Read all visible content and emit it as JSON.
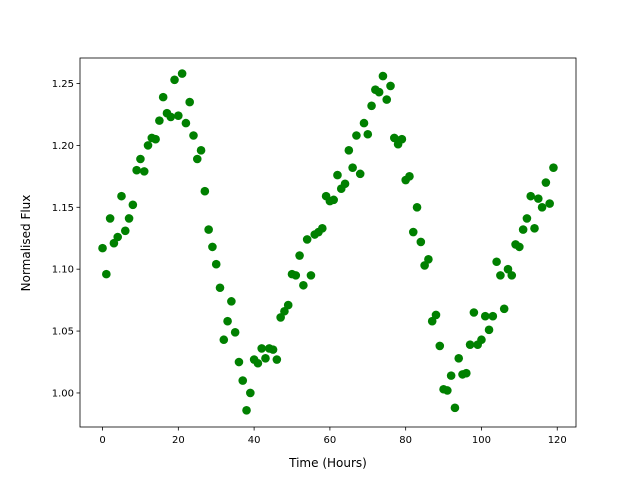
{
  "chart_data": {
    "type": "scatter",
    "xlabel": "Time (Hours)",
    "ylabel": "Normalised Flux",
    "color": "#008000",
    "x": [
      0,
      1,
      2,
      3,
      4,
      5,
      6,
      7,
      8,
      9,
      10,
      11,
      12,
      13,
      14,
      15,
      16,
      17,
      18,
      19,
      20,
      21,
      22,
      23,
      24,
      25,
      26,
      27,
      28,
      29,
      30,
      31,
      32,
      33,
      34,
      35,
      36,
      37,
      38,
      39,
      40,
      41,
      42,
      43,
      44,
      45,
      46,
      47,
      48,
      49,
      50,
      51,
      52,
      53,
      54,
      55,
      56,
      57,
      58,
      59,
      60,
      61,
      62,
      63,
      64,
      65,
      66,
      67,
      68,
      69,
      70,
      71,
      72,
      73,
      74,
      75,
      76,
      77,
      78,
      79,
      80,
      81,
      82,
      83,
      84,
      85,
      86,
      87,
      88,
      89,
      90,
      91,
      92,
      93,
      94,
      95,
      96,
      97,
      98,
      99,
      100,
      101,
      102,
      103,
      104,
      105,
      106,
      107,
      108,
      109,
      110,
      111,
      112,
      113,
      114,
      115,
      116,
      117,
      118,
      119
    ],
    "values": [
      1.117,
      1.096,
      1.141,
      1.121,
      1.126,
      1.159,
      1.131,
      1.141,
      1.152,
      1.18,
      1.189,
      1.179,
      1.2,
      1.206,
      1.205,
      1.22,
      1.239,
      1.226,
      1.223,
      1.253,
      1.224,
      1.258,
      1.218,
      1.235,
      1.208,
      1.189,
      1.196,
      1.163,
      1.132,
      1.118,
      1.104,
      1.085,
      1.043,
      1.058,
      1.074,
      1.049,
      1.025,
      1.01,
      0.986,
      1.0,
      1.027,
      1.024,
      1.036,
      1.028,
      1.036,
      1.035,
      1.027,
      1.061,
      1.066,
      1.071,
      1.096,
      1.095,
      1.111,
      1.087,
      1.124,
      1.095,
      1.128,
      1.13,
      1.133,
      1.159,
      1.155,
      1.156,
      1.176,
      1.165,
      1.169,
      1.196,
      1.182,
      1.208,
      1.177,
      1.218,
      1.209,
      1.232,
      1.245,
      1.243,
      1.256,
      1.237,
      1.248,
      1.206,
      1.201,
      1.205,
      1.172,
      1.175,
      1.13,
      1.15,
      1.122,
      1.103,
      1.108,
      1.058,
      1.063,
      1.038,
      1.003,
      1.002,
      1.014,
      0.988,
      1.028,
      1.015,
      1.016,
      1.039,
      1.065,
      1.039,
      1.043,
      1.062,
      1.051,
      1.062,
      1.106,
      1.095,
      1.068,
      1.1,
      1.095,
      1.12,
      1.118,
      1.132,
      1.141,
      1.159,
      1.133,
      1.157,
      1.15,
      1.17,
      1.153,
      1.182
    ],
    "xlim": [
      -5.95,
      124.95
    ],
    "ylim": [
      0.9725,
      1.2706
    ],
    "xticks": [
      0,
      20,
      40,
      60,
      80,
      100,
      120
    ],
    "yticks": [
      {
        "value": 1.0,
        "label": "1.00"
      },
      1.05,
      {
        "value": 1.1,
        "label": "1.10"
      },
      1.15,
      {
        "value": 1.2,
        "label": "1.20"
      },
      1.25
    ]
  }
}
